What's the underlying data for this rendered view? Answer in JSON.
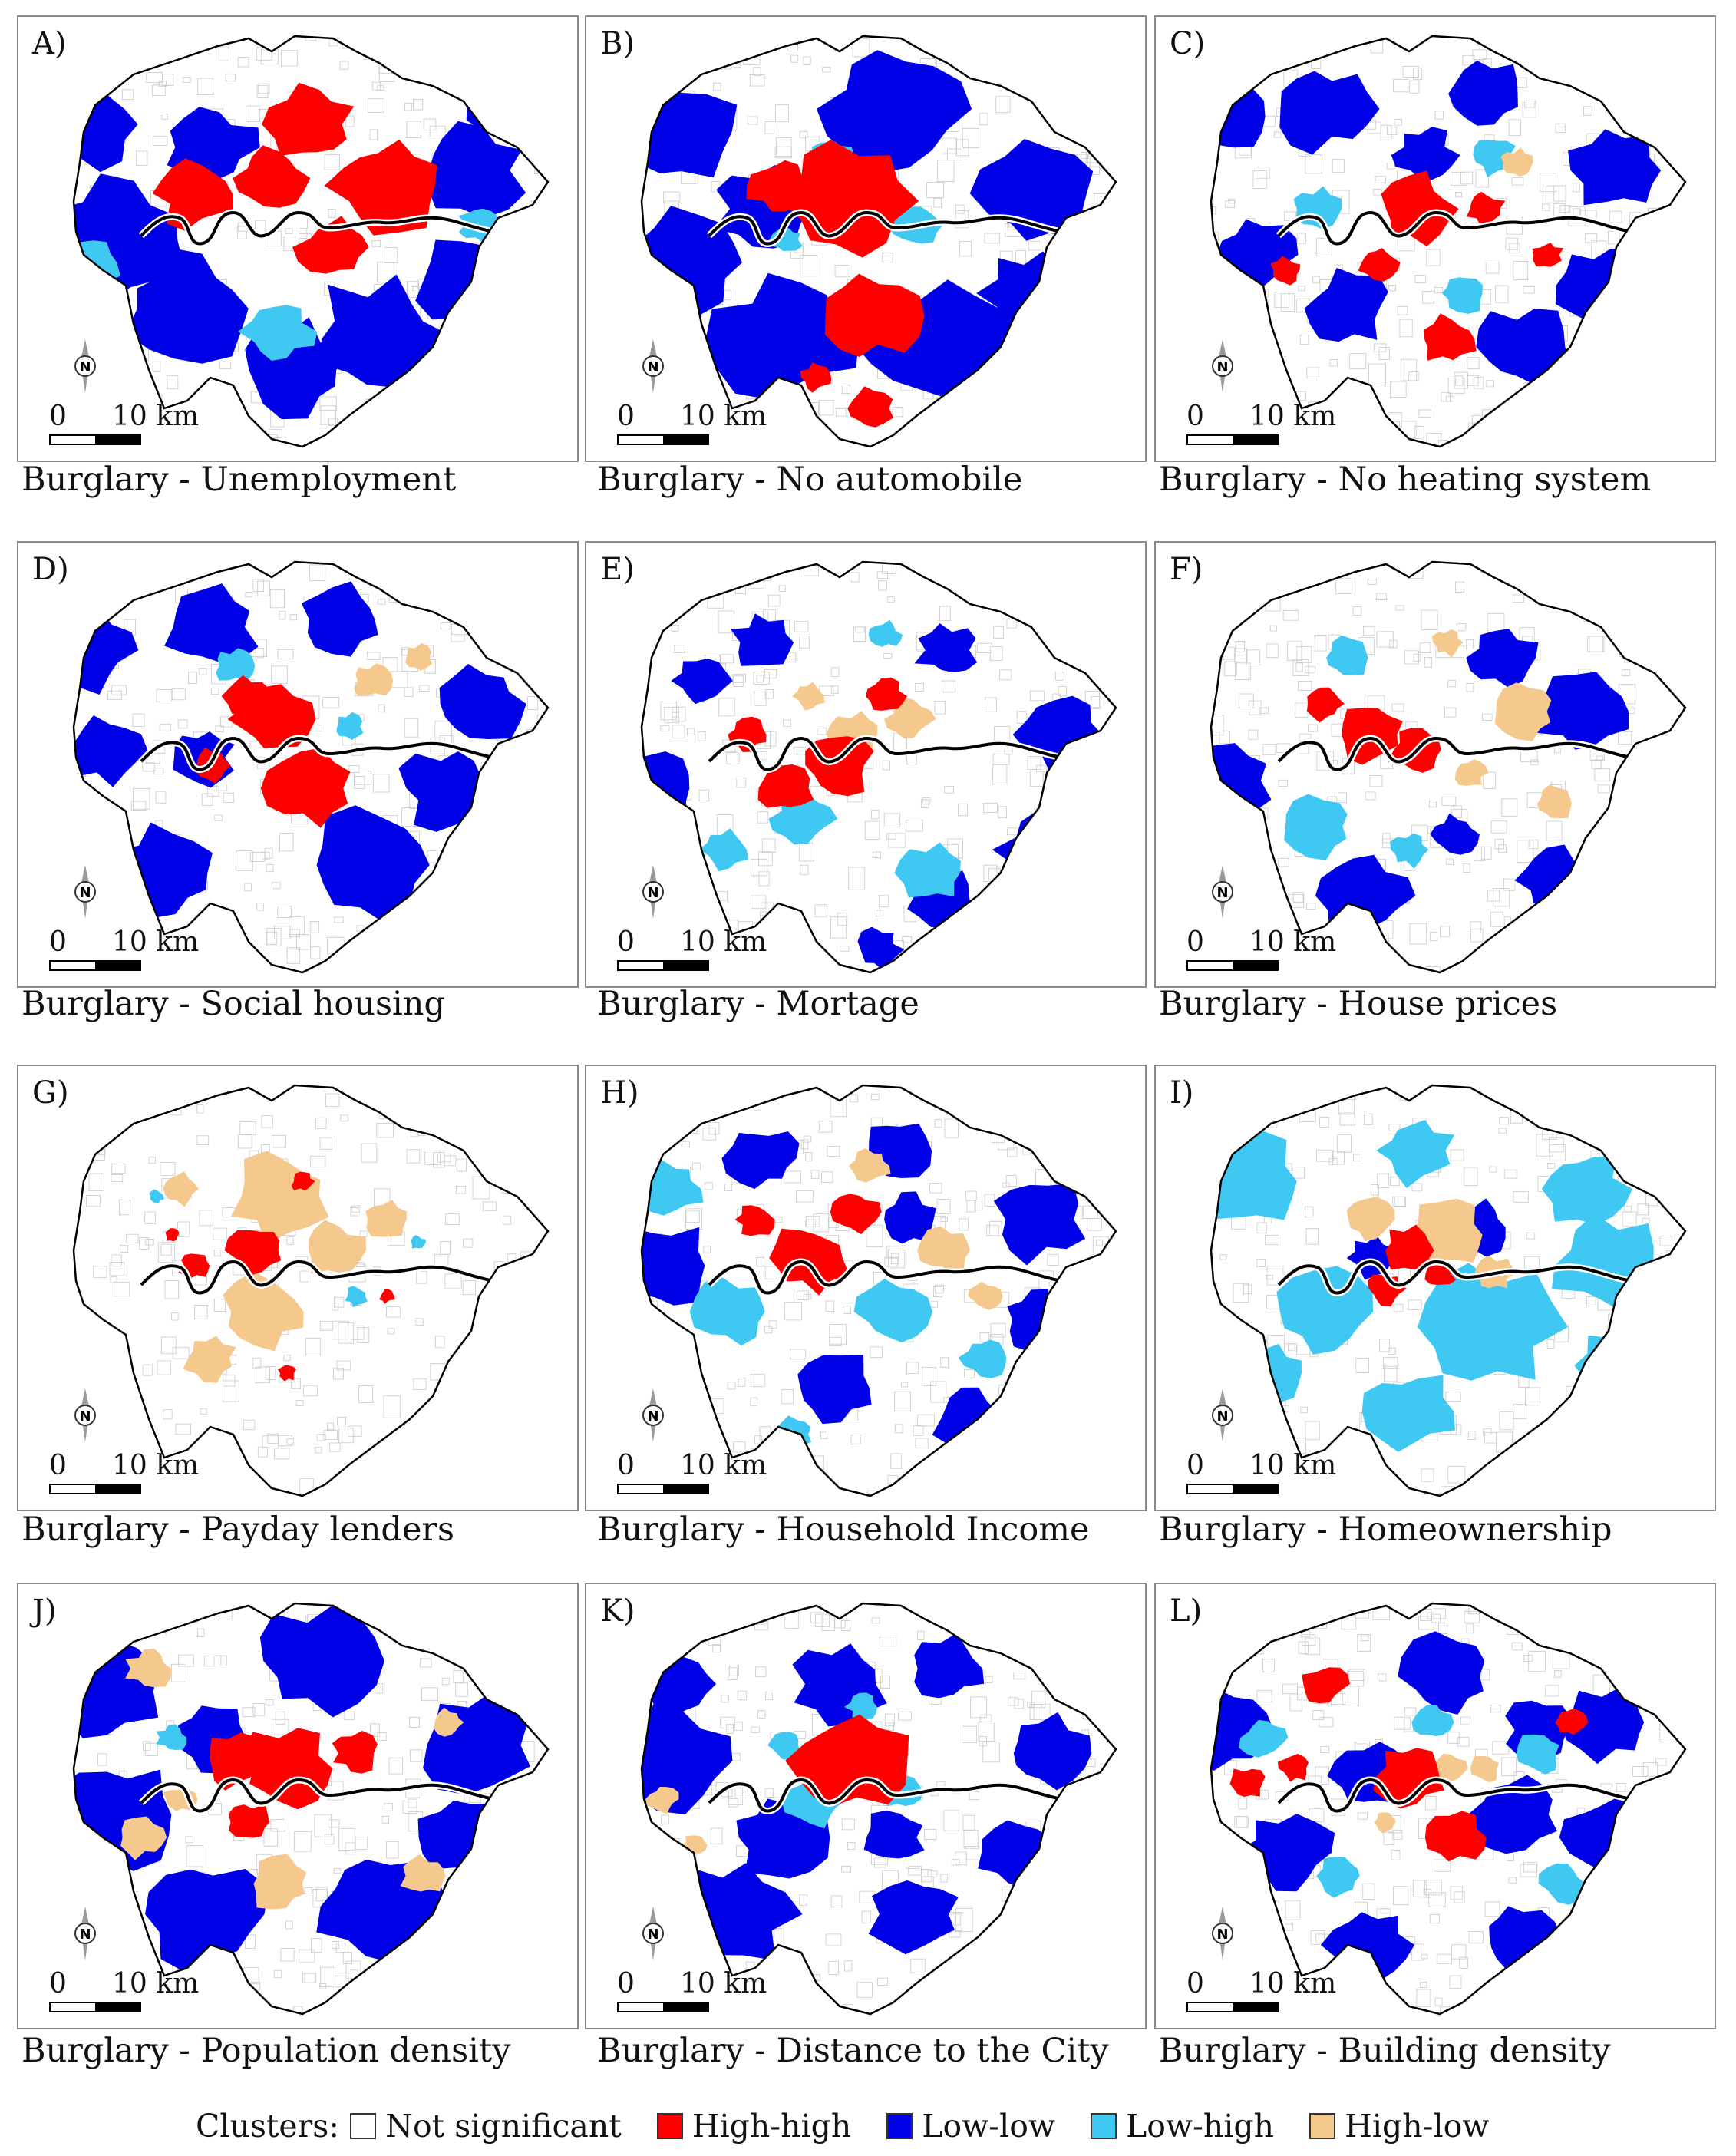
{
  "colors": {
    "not_significant": "#ffffff",
    "high_high": "#ff0000",
    "low_low": "#0000e6",
    "low_high": "#3fc8f2",
    "high_low": "#f5c98e",
    "outline": "#000000",
    "river": "#000000"
  },
  "map_common": {
    "scale_zero": "0",
    "scale_label": "10 km",
    "north_label": "N"
  },
  "panels": [
    {
      "letter": "A)",
      "caption": "Burglary - Unemployment",
      "patches": {
        "low_low": [
          [
            90,
            140,
            70
          ],
          [
            250,
            170,
            60
          ],
          [
            590,
            200,
            70
          ],
          [
            130,
            290,
            90
          ],
          [
            220,
            380,
            80
          ],
          [
            470,
            420,
            90
          ],
          [
            360,
            460,
            70
          ],
          [
            590,
            340,
            70
          ],
          [
            620,
            120,
            40
          ]
        ],
        "high_high": [
          [
            230,
            230,
            50
          ],
          [
            330,
            210,
            45
          ],
          [
            380,
            140,
            55
          ],
          [
            480,
            220,
            70
          ],
          [
            410,
            300,
            45
          ]
        ],
        "low_high": [
          [
            90,
            320,
            40
          ],
          [
            340,
            410,
            45
          ],
          [
            600,
            270,
            25
          ]
        ],
        "high_low": []
      }
    },
    {
      "letter": "B)",
      "caption": "Burglary - No automobile",
      "patches": {
        "low_low": [
          [
            110,
            150,
            80
          ],
          [
            400,
            120,
            90
          ],
          [
            590,
            230,
            80
          ],
          [
            130,
            320,
            80
          ],
          [
            260,
            420,
            90
          ],
          [
            450,
            420,
            90
          ],
          [
            580,
            360,
            60
          ],
          [
            230,
            250,
            60
          ]
        ],
        "high_high": [
          [
            340,
            240,
            90
          ],
          [
            370,
            390,
            60
          ],
          [
            370,
            510,
            30
          ],
          [
            300,
            470,
            20
          ],
          [
            250,
            220,
            40
          ]
        ],
        "low_high": [
          [
            430,
            270,
            35
          ],
          [
            320,
            180,
            25
          ],
          [
            260,
            290,
            20
          ]
        ],
        "high_low": []
      }
    },
    {
      "letter": "C)",
      "caption": "Burglary - No heating system",
      "patches": {
        "low_low": [
          [
            90,
            130,
            50
          ],
          [
            220,
            120,
            60
          ],
          [
            430,
            100,
            50
          ],
          [
            600,
            200,
            60
          ],
          [
            130,
            310,
            50
          ],
          [
            250,
            380,
            55
          ],
          [
            480,
            430,
            60
          ],
          [
            580,
            350,
            55
          ],
          [
            350,
            180,
            40
          ]
        ],
        "high_high": [
          [
            340,
            250,
            50
          ],
          [
            430,
            250,
            25
          ],
          [
            170,
            330,
            20
          ],
          [
            380,
            420,
            35
          ],
          [
            290,
            320,
            25
          ],
          [
            510,
            310,
            20
          ]
        ],
        "low_high": [
          [
            210,
            250,
            30
          ],
          [
            440,
            180,
            30
          ],
          [
            400,
            360,
            30
          ]
        ],
        "high_low": [
          [
            470,
            190,
            20
          ]
        ]
      }
    },
    {
      "letter": "D)",
      "caption": "Burglary - Social housing",
      "patches": {
        "low_low": [
          [
            90,
            140,
            60
          ],
          [
            250,
            110,
            60
          ],
          [
            420,
            100,
            50
          ],
          [
            600,
            210,
            60
          ],
          [
            110,
            270,
            50
          ],
          [
            190,
            430,
            70
          ],
          [
            460,
            420,
            80
          ],
          [
            560,
            320,
            60
          ],
          [
            240,
            280,
            40
          ]
        ],
        "high_high": [
          [
            330,
            230,
            50
          ],
          [
            380,
            320,
            55
          ],
          [
            300,
            200,
            30
          ],
          [
            250,
            290,
            25
          ]
        ],
        "low_high": [
          [
            280,
            160,
            25
          ],
          [
            430,
            240,
            20
          ]
        ],
        "high_low": [
          [
            460,
            180,
            25
          ],
          [
            520,
            150,
            20
          ]
        ]
      }
    },
    {
      "letter": "E)",
      "caption": "Burglary - Mortage",
      "patches": {
        "low_low": [
          [
            150,
            180,
            35
          ],
          [
            90,
            320,
            55
          ],
          [
            620,
            250,
            55
          ],
          [
            600,
            400,
            60
          ],
          [
            470,
            140,
            40
          ],
          [
            460,
            460,
            45
          ],
          [
            230,
            130,
            40
          ],
          [
            380,
            530,
            30
          ]
        ],
        "high_high": [
          [
            330,
            290,
            45
          ],
          [
            260,
            320,
            35
          ],
          [
            210,
            250,
            25
          ],
          [
            390,
            200,
            25
          ]
        ],
        "low_high": [
          [
            280,
            360,
            40
          ],
          [
            450,
            430,
            45
          ],
          [
            180,
            400,
            30
          ],
          [
            390,
            120,
            20
          ]
        ],
        "high_low": [
          [
            420,
            230,
            30
          ],
          [
            350,
            250,
            35
          ],
          [
            290,
            200,
            20
          ]
        ]
      }
    },
    {
      "letter": "F)",
      "caption": "Burglary - House prices",
      "patches": {
        "low_low": [
          [
            90,
            310,
            65
          ],
          [
            560,
            220,
            65
          ],
          [
            450,
            150,
            45
          ],
          [
            270,
            460,
            60
          ],
          [
            520,
            440,
            50
          ],
          [
            600,
            400,
            40
          ],
          [
            390,
            380,
            30
          ]
        ],
        "high_high": [
          [
            280,
            250,
            45
          ],
          [
            340,
            270,
            35
          ],
          [
            220,
            210,
            25
          ]
        ],
        "low_high": [
          [
            210,
            370,
            45
          ],
          [
            250,
            150,
            30
          ],
          [
            330,
            400,
            25
          ]
        ],
        "high_low": [
          [
            480,
            220,
            40
          ],
          [
            520,
            340,
            25
          ],
          [
            380,
            130,
            20
          ],
          [
            410,
            300,
            20
          ]
        ]
      }
    },
    {
      "letter": "G)",
      "caption": "Burglary - Payday lenders",
      "patches": {
        "low_low": [],
        "high_high": [
          [
            310,
            240,
            35
          ],
          [
            230,
            260,
            20
          ],
          [
            370,
            150,
            15
          ],
          [
            350,
            400,
            12
          ],
          [
            200,
            220,
            10
          ],
          [
            480,
            300,
            10
          ]
        ],
        "low_high": [
          [
            440,
            300,
            15
          ],
          [
            180,
            170,
            10
          ],
          [
            520,
            230,
            10
          ]
        ],
        "high_low": [
          [
            340,
            170,
            65
          ],
          [
            320,
            320,
            55
          ],
          [
            410,
            240,
            40
          ],
          [
            250,
            380,
            35
          ],
          [
            480,
            200,
            30
          ],
          [
            210,
            160,
            25
          ]
        ]
      }
    },
    {
      "letter": "H)",
      "caption": "Burglary - Household Income",
      "patches": {
        "low_low": [
          [
            100,
            260,
            65
          ],
          [
            230,
            120,
            45
          ],
          [
            400,
            110,
            45
          ],
          [
            590,
            200,
            60
          ],
          [
            320,
            420,
            55
          ],
          [
            500,
            460,
            50
          ],
          [
            590,
            330,
            45
          ],
          [
            420,
            200,
            40
          ]
        ],
        "high_high": [
          [
            290,
            250,
            50
          ],
          [
            220,
            200,
            25
          ],
          [
            350,
            190,
            30
          ]
        ],
        "low_high": [
          [
            190,
            320,
            50
          ],
          [
            110,
            160,
            40
          ],
          [
            400,
            320,
            45
          ],
          [
            270,
            480,
            25
          ],
          [
            520,
            380,
            30
          ]
        ],
        "high_low": [
          [
            470,
            240,
            35
          ],
          [
            370,
            130,
            25
          ],
          [
            520,
            300,
            20
          ]
        ]
      }
    },
    {
      "letter": "I)",
      "caption": "Burglary - Homeownership",
      "patches": {
        "low_low": [
          [
            420,
            210,
            40
          ],
          [
            280,
            250,
            30
          ]
        ],
        "high_high": [
          [
            330,
            240,
            35
          ],
          [
            300,
            290,
            25
          ],
          [
            370,
            270,
            20
          ]
        ],
        "low_high": [
          [
            120,
            150,
            70
          ],
          [
            220,
            320,
            60
          ],
          [
            430,
            340,
            90
          ],
          [
            590,
            260,
            70
          ],
          [
            330,
            450,
            60
          ],
          [
            560,
            160,
            55
          ],
          [
            340,
            110,
            50
          ],
          [
            150,
            400,
            45
          ],
          [
            600,
            390,
            50
          ]
        ],
        "high_low": [
          [
            380,
            220,
            50
          ],
          [
            280,
            200,
            30
          ],
          [
            440,
            270,
            25
          ]
        ]
      }
    },
    {
      "letter": "J)",
      "caption": "Burglary - Population density",
      "patches": {
        "low_low": [
          [
            100,
            140,
            80
          ],
          [
            390,
            100,
            80
          ],
          [
            600,
            210,
            75
          ],
          [
            130,
            300,
            80
          ],
          [
            240,
            430,
            80
          ],
          [
            470,
            420,
            80
          ],
          [
            580,
            330,
            60
          ],
          [
            250,
            200,
            50
          ]
        ],
        "high_high": [
          [
            350,
            240,
            60
          ],
          [
            280,
            230,
            40
          ],
          [
            440,
            220,
            30
          ],
          [
            300,
            310,
            30
          ]
        ],
        "low_high": [
          [
            200,
            200,
            20
          ]
        ],
        "high_low": [
          [
            170,
            110,
            30
          ],
          [
            160,
            330,
            30
          ],
          [
            340,
            390,
            40
          ],
          [
            530,
            380,
            30
          ],
          [
            560,
            180,
            20
          ],
          [
            210,
            280,
            20
          ]
        ]
      }
    },
    {
      "letter": "K)",
      "caption": "Burglary - Distance to the City",
      "patches": {
        "low_low": [
          [
            110,
            230,
            80
          ],
          [
            190,
            430,
            80
          ],
          [
            330,
            130,
            60
          ],
          [
            470,
            110,
            50
          ],
          [
            600,
            220,
            55
          ],
          [
            430,
            430,
            60
          ],
          [
            560,
            350,
            55
          ],
          [
            120,
            130,
            50
          ],
          [
            250,
            330,
            60
          ],
          [
            400,
            330,
            40
          ]
        ],
        "high_high": [
          [
            340,
            230,
            75
          ]
        ],
        "low_high": [
          [
            300,
            280,
            40
          ],
          [
            410,
            270,
            25
          ],
          [
            260,
            210,
            20
          ],
          [
            360,
            160,
            20
          ]
        ],
        "high_low": [
          [
            100,
            280,
            20
          ],
          [
            140,
            340,
            15
          ]
        ]
      }
    },
    {
      "letter": "L)",
      "caption": "Burglary - Building density",
      "patches": {
        "low_low": [
          [
            90,
            190,
            60
          ],
          [
            380,
            120,
            60
          ],
          [
            590,
            180,
            55
          ],
          [
            170,
            350,
            60
          ],
          [
            280,
            250,
            50
          ],
          [
            470,
            300,
            55
          ],
          [
            590,
            330,
            55
          ],
          [
            280,
            470,
            55
          ],
          [
            470,
            460,
            50
          ],
          [
            500,
            190,
            45
          ]
        ],
        "high_high": [
          [
            220,
            130,
            30
          ],
          [
            120,
            260,
            25
          ],
          [
            330,
            250,
            45
          ],
          [
            390,
            330,
            40
          ],
          [
            540,
            180,
            20
          ],
          [
            180,
            240,
            20
          ]
        ],
        "low_high": [
          [
            140,
            200,
            30
          ],
          [
            500,
            220,
            30
          ],
          [
            240,
            380,
            30
          ],
          [
            530,
            390,
            30
          ],
          [
            360,
            180,
            25
          ]
        ],
        "high_low": [
          [
            380,
            240,
            25
          ],
          [
            430,
            240,
            20
          ],
          [
            300,
            310,
            15
          ]
        ]
      }
    }
  ],
  "legend": {
    "title": "Clusters:",
    "items": [
      {
        "key": "not_significant",
        "label": "Not significant"
      },
      {
        "key": "high_high",
        "label": "High-high"
      },
      {
        "key": "low_low",
        "label": "Low-low"
      },
      {
        "key": "low_high",
        "label": "Low-high"
      },
      {
        "key": "high_low",
        "label": "High-low"
      }
    ]
  }
}
